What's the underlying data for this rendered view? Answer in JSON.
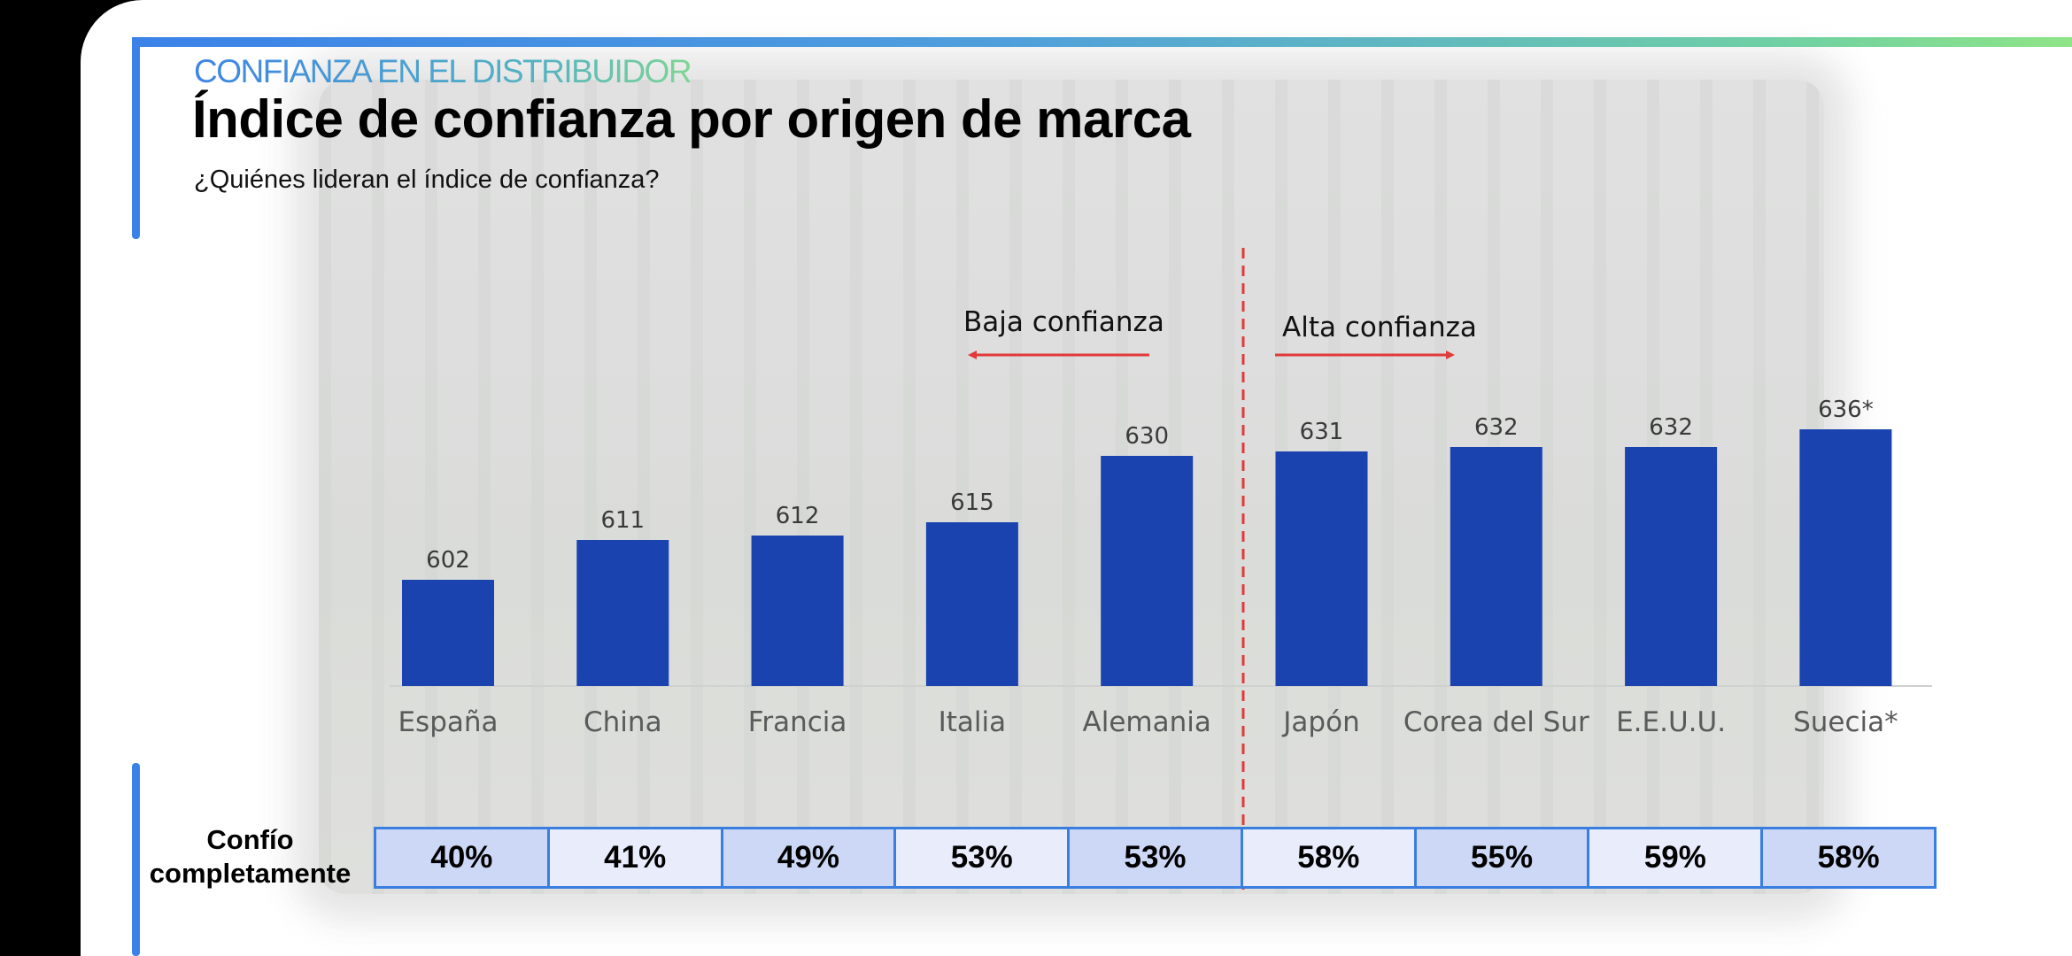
{
  "header": {
    "kicker": "CONFIANZA EN EL DISTRIBUIDOR",
    "title": "Índice de confianza por origen de marca",
    "subtitle": "¿Quiénes lideran el índice de confianza?"
  },
  "colors": {
    "bar": "#1a43b0",
    "divider": "#e03a3a",
    "accent_blue": "#3b82e8",
    "accent_green": "#8ee486"
  },
  "chart_data": {
    "type": "bar",
    "title": "",
    "xlabel": "",
    "ylabel": "",
    "categories": [
      "España",
      "China",
      "Francia",
      "Italia",
      "Alemania",
      "Japón",
      "Corea del Sur",
      "E.E.U.U.",
      "Suecia*"
    ],
    "values": [
      602,
      611,
      612,
      615,
      630,
      631,
      632,
      632,
      636
    ],
    "value_labels": [
      "602",
      "611",
      "612",
      "615",
      "630",
      "631",
      "632",
      "632",
      "636*"
    ],
    "ylim": [
      580,
      640
    ],
    "grid": false,
    "annotations": {
      "low": "Baja confianza",
      "high": "Alta confianza"
    }
  },
  "table": {
    "row_label_line1": "Confío",
    "row_label_line2": "completamente",
    "values": [
      "40%",
      "41%",
      "49%",
      "53%",
      "53%",
      "58%",
      "55%",
      "59%",
      "58%"
    ]
  }
}
